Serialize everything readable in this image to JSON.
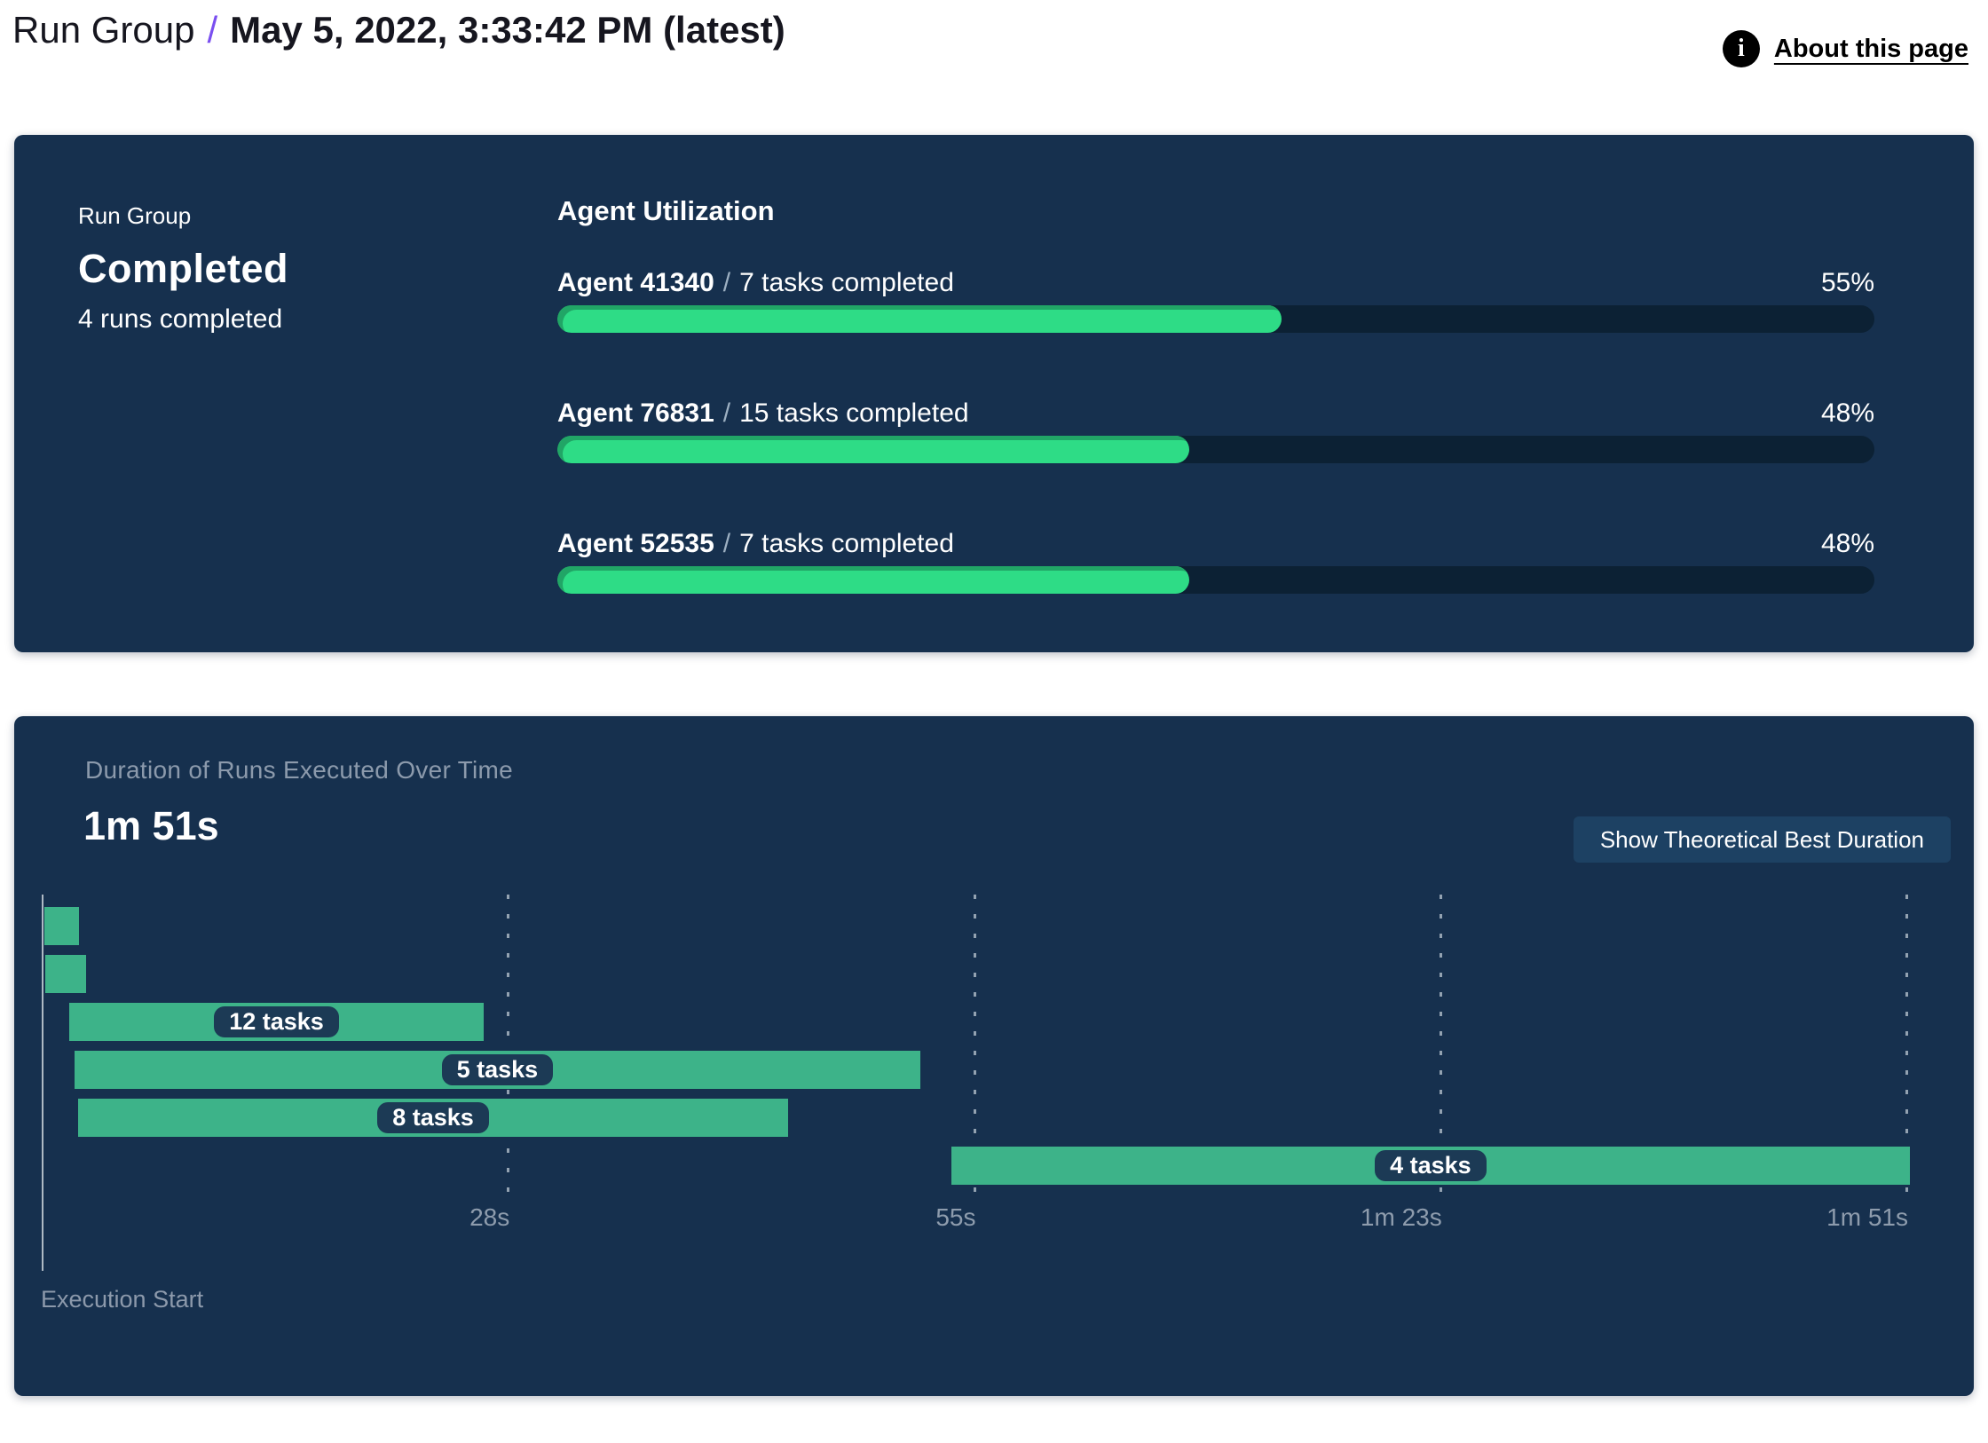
{
  "header": {
    "breadcrumb_root": "Run Group",
    "separator": "/",
    "title": "May 5, 2022, 3:33:42 PM (latest)",
    "about_link": "About this page",
    "info_icon": "i"
  },
  "colors": {
    "panel_navy": "#16304E",
    "progress_green": "#2EDC86",
    "progress_green_shadow": "#21A566",
    "progress_track": "#0C2134",
    "gantt_green": "#3DB389",
    "pill_navy": "#1C3A55",
    "button_navy": "#1D4163",
    "accent_purple": "#7A4FF0",
    "muted_text": "#8C9AAC"
  },
  "summary_panel": {
    "label": "Run Group",
    "status": "Completed",
    "runs_completed": "4 runs completed",
    "utilization": {
      "title": "Agent Utilization",
      "separator": "/",
      "agents": [
        {
          "name": "Agent 41340",
          "tasks": "7 tasks completed",
          "percent": "55%",
          "value": 55
        },
        {
          "name": "Agent 76831",
          "tasks": "15 tasks completed",
          "percent": "48%",
          "value": 48
        },
        {
          "name": "Agent 52535",
          "tasks": "7 tasks completed",
          "percent": "48%",
          "value": 48
        }
      ]
    }
  },
  "duration_panel": {
    "title": "Duration of Runs Executed Over Time",
    "total_duration": "1m 51s",
    "button_label": "Show Theoretical Best Duration",
    "execution_start_label": "Execution Start",
    "chart": {
      "type": "gantt",
      "time_axis_max_seconds": 111,
      "axis_ticks": [
        {
          "label": "28s",
          "seconds": 27.75
        },
        {
          "label": "55s",
          "seconds": 55.5
        },
        {
          "label": "1m 23s",
          "seconds": 83.25
        },
        {
          "label": "1m 51s",
          "seconds": 111
        }
      ],
      "bars": [
        {
          "tasks_label": "",
          "tasks": null,
          "start_s": 0.15,
          "end_s": 2.2
        },
        {
          "tasks_label": "",
          "tasks": null,
          "start_s": 0.2,
          "end_s": 2.65
        },
        {
          "tasks_label": "12 tasks",
          "tasks": 12,
          "start_s": 1.65,
          "end_s": 26.3
        },
        {
          "tasks_label": "5 tasks",
          "tasks": 5,
          "start_s": 1.95,
          "end_s": 52.3
        },
        {
          "tasks_label": "8 tasks",
          "tasks": 8,
          "start_s": 2.15,
          "end_s": 44.45
        },
        {
          "tasks_label": "4 tasks",
          "tasks": 4,
          "start_s": 54.15,
          "end_s": 111.2
        }
      ]
    }
  }
}
